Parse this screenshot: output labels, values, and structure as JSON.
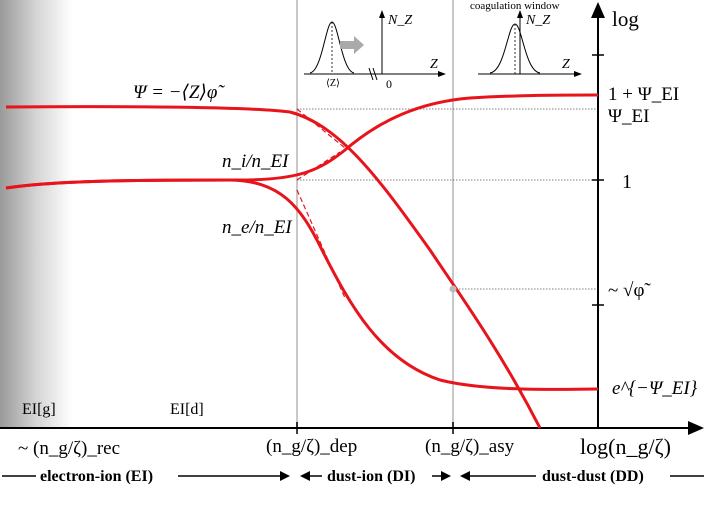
{
  "axes": {
    "y_label": "log",
    "x_label": "log(n_g/ζ)"
  },
  "y_ticks": {
    "one_plus_psi": "1 + Ψ_EI",
    "psi": "Ψ_EI",
    "one": "1",
    "sqrt_phi": "~ √φ̃",
    "exp": "e^{−Ψ_EI}"
  },
  "x_ticks": {
    "rec": "~ (n_g/ζ)_rec",
    "dep": "(n_g/ζ)_dep",
    "asy": "(n_g/ζ)_asy"
  },
  "curves": {
    "psi_label": "Ψ = −⟨Z⟩φ̃",
    "ni_label": "n_i/n_EI",
    "ne_label": "n_e/n_EI"
  },
  "region_labels": {
    "eig": "EI[g]",
    "eid": "EI[d]"
  },
  "regimes": {
    "ei": "electron-ion (EI)",
    "di": "dust-ion (DI)",
    "dd": "dust-dust (DD)"
  },
  "insets": {
    "coagulation": "coagulation window",
    "nz_1": "N_Z",
    "z_1": "Z",
    "zero": "0",
    "meanz": "⟨Z⟩",
    "nz_2": "N_Z",
    "z_2": "Z"
  },
  "colors": {
    "curve": "#e8141b",
    "guide": "#c8c8c8",
    "arrow": "#aaaaaa"
  }
}
